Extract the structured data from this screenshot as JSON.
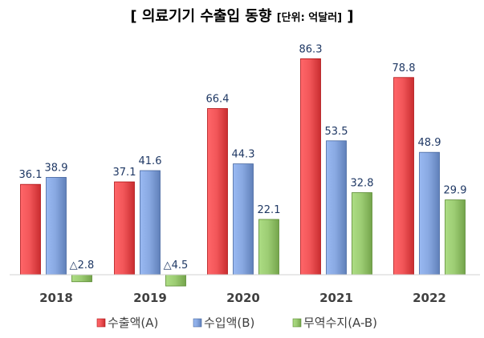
{
  "title": {
    "main": "[ 의료기기 수출입 동향 ",
    "unit": "[단위: 억달러]",
    "close": " ]"
  },
  "chart_data": {
    "type": "bar",
    "categories": [
      "2018",
      "2019",
      "2020",
      "2021",
      "2022"
    ],
    "series": [
      {
        "name": "수출액(A)",
        "color": "#e84c4f",
        "values": [
          36.1,
          37.1,
          66.4,
          86.3,
          78.8
        ],
        "labels": [
          "36.1",
          "37.1",
          "66.4",
          "86.3",
          "78.8"
        ]
      },
      {
        "name": "수입액(B)",
        "color": "#7f9fd8",
        "values": [
          38.9,
          41.6,
          44.3,
          53.5,
          48.9
        ],
        "labels": [
          "38.9",
          "41.6",
          "44.3",
          "53.5",
          "48.9"
        ]
      },
      {
        "name": "무역수지(A-B)",
        "color": "#93c36a",
        "values": [
          -2.8,
          -4.5,
          22.1,
          32.8,
          29.9
        ],
        "labels": [
          "△2.8",
          "△4.5",
          "22.1",
          "32.8",
          "29.9"
        ]
      }
    ],
    "ylim": [
      -4.5,
      95
    ],
    "grid": false,
    "legend_position": "bottom"
  }
}
